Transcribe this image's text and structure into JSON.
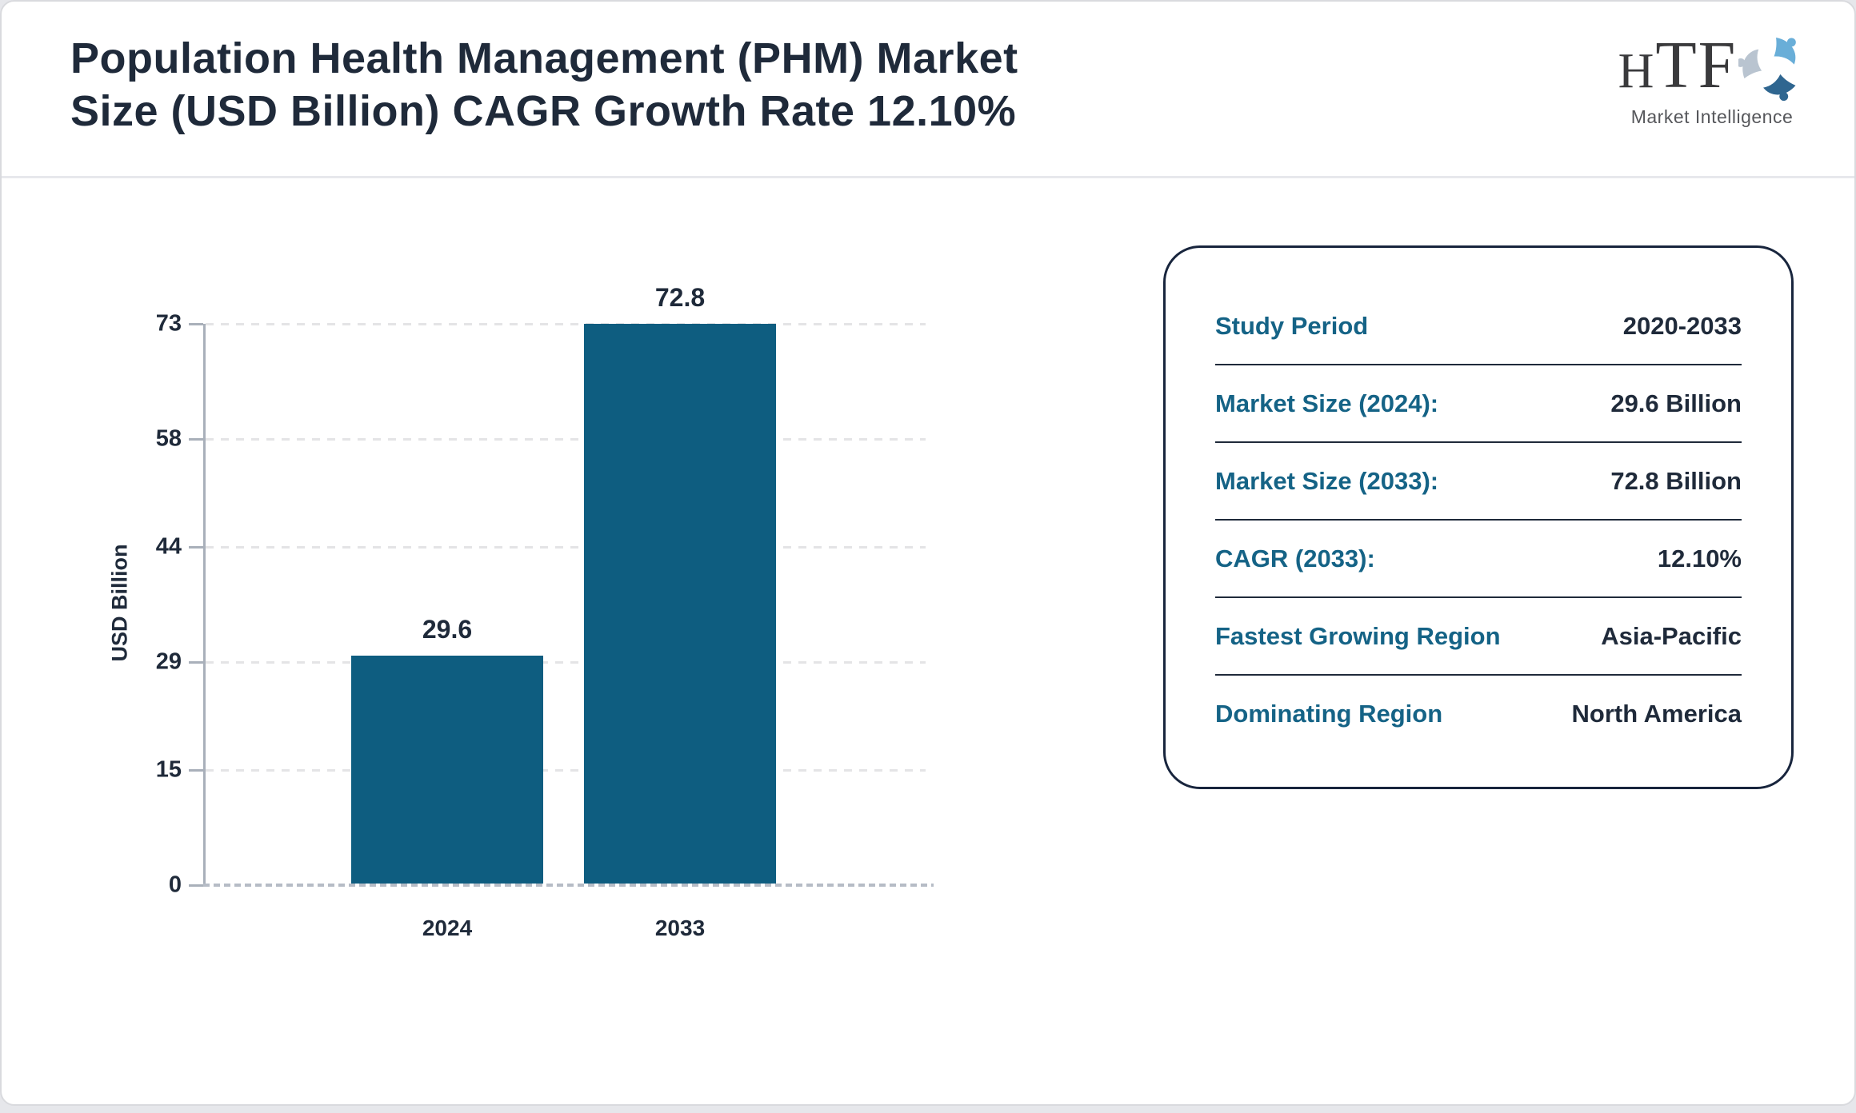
{
  "header": {
    "title_line1": "Population Health Management (PHM) Market",
    "title_line2": "Size (USD Billion) CAGR Growth Rate 12.10%",
    "logo": {
      "text": "TF",
      "text_first_letter": "H",
      "subtext": "Market Intelligence"
    }
  },
  "chart_data": {
    "type": "bar",
    "title": "",
    "categories": [
      "2024",
      "2033"
    ],
    "values": [
      29.6,
      72.8
    ],
    "data_labels": [
      "29.6",
      "72.8"
    ],
    "xlabel": "",
    "ylabel": "USD Billion",
    "yticks": [
      0,
      15,
      29,
      44,
      58,
      73
    ],
    "ylim": [
      0,
      73
    ],
    "grid": "horizontal-dashed",
    "legend": "none",
    "bar_color": "#0e5d80"
  },
  "panel": {
    "rows": [
      {
        "label": "Study Period",
        "value": "2020-2033"
      },
      {
        "label": "Market Size (2024):",
        "value": "29.6 Billion"
      },
      {
        "label": "Market Size (2033):",
        "value": "72.8 Billion"
      },
      {
        "label": "CAGR (2033):",
        "value": "12.10%"
      },
      {
        "label": "Fastest Growing Region",
        "value": "Asia-Pacific"
      },
      {
        "label": "Dominating Region",
        "value": "North America"
      }
    ]
  },
  "colors": {
    "bar": "#0e5d80",
    "label_teal": "#156386",
    "text_dark": "#1f2a3a",
    "grid": "#e4e4e6",
    "axis": "#a9b0ba",
    "panel_border": "#18253d",
    "page_edge": "#e6e7eb"
  }
}
